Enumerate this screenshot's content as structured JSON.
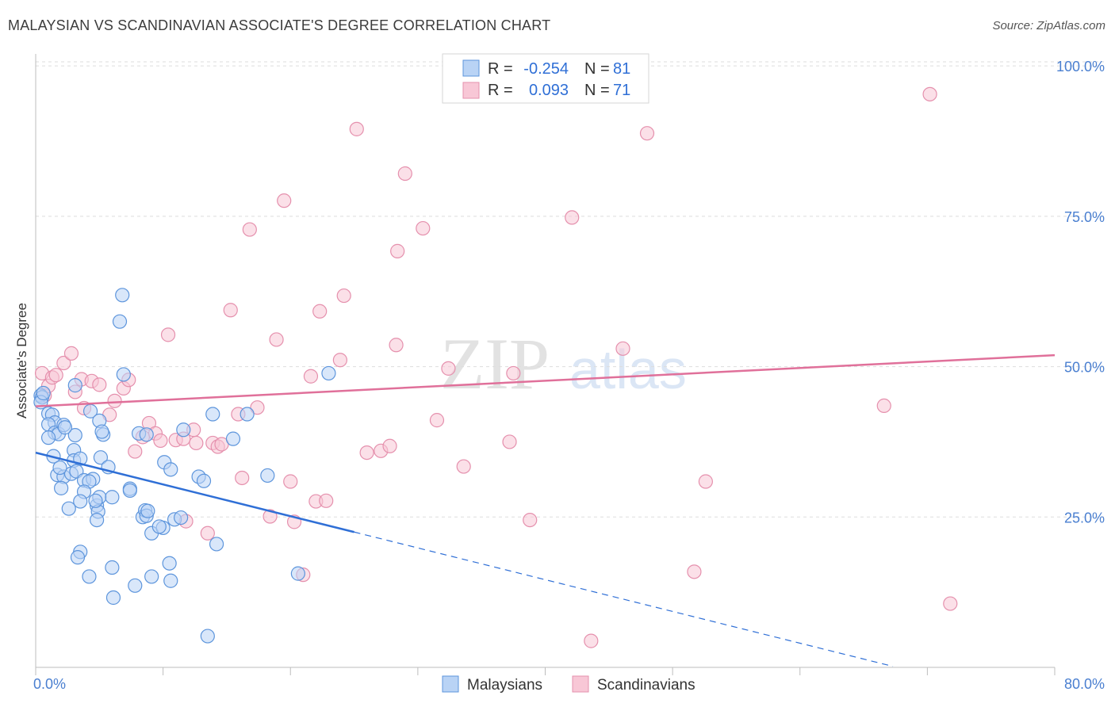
{
  "header": {
    "title": "MALAYSIAN VS SCANDINAVIAN ASSOCIATE'S DEGREE CORRELATION CHART",
    "source": "Source: ZipAtlas.com"
  },
  "watermark": {
    "zip": "ZIP",
    "atlas": "atlas"
  },
  "legend": {
    "rows": [
      {
        "r_label": "R =",
        "r_value": "-0.254",
        "n_label": "N =",
        "n_value": "81"
      },
      {
        "r_label": "R =",
        "r_value": "0.093",
        "n_label": "N =",
        "n_value": "71"
      }
    ]
  },
  "bottom_legend": {
    "items": [
      "Malaysians",
      "Scandinavians"
    ]
  },
  "colors": {
    "blue_fill": "#b9d3f5",
    "blue_stroke": "#5d95dc",
    "blue_line": "#2f6fd6",
    "pink_fill": "#f8c7d6",
    "pink_stroke": "#e590ad",
    "pink_line": "#e0709a",
    "tick_label": "#4a7fd0",
    "grid": "#dddddd"
  },
  "chart_data": {
    "type": "scatter",
    "ylabel": "Associate's Degree",
    "x_tick_labels": [
      "0.0%",
      "80.0%"
    ],
    "y_tick_labels": [
      "100.0%",
      "75.0%",
      "50.0%",
      "25.0%"
    ],
    "y_ticks": [
      100,
      75,
      50,
      25
    ],
    "xlim": [
      0,
      80
    ],
    "ylim": [
      0,
      102
    ],
    "grid": true,
    "legend_position": "top-center",
    "series": [
      {
        "name": "Malaysians",
        "r": -0.254,
        "n": 81,
        "trend": {
          "x0": 0,
          "y0": 35.7,
          "x1": 25,
          "y1": 22.5,
          "dashed_to_x": 67.3
        },
        "points": [
          [
            0.4,
            45.2
          ],
          [
            0.5,
            44.9
          ],
          [
            0.4,
            44.1
          ],
          [
            1.0,
            42.2
          ],
          [
            1.3,
            42.0
          ],
          [
            1.5,
            40.7
          ],
          [
            1.0,
            40.4
          ],
          [
            1.5,
            39.0
          ],
          [
            1.8,
            38.8
          ],
          [
            1.0,
            38.2
          ],
          [
            3.1,
            38.6
          ],
          [
            3.1,
            46.9
          ],
          [
            0.6,
            45.6
          ],
          [
            1.4,
            35.1
          ],
          [
            2.2,
            40.3
          ],
          [
            2.3,
            39.9
          ],
          [
            3.0,
            36.1
          ],
          [
            3.0,
            34.4
          ],
          [
            3.5,
            34.7
          ],
          [
            1.7,
            32.0
          ],
          [
            2.2,
            31.7
          ],
          [
            2.8,
            32.2
          ],
          [
            3.2,
            32.6
          ],
          [
            3.8,
            31.1
          ],
          [
            4.5,
            31.3
          ],
          [
            4.2,
            30.9
          ],
          [
            2.0,
            29.8
          ],
          [
            3.8,
            29.2
          ],
          [
            3.5,
            27.6
          ],
          [
            2.6,
            26.4
          ],
          [
            4.8,
            26.9
          ],
          [
            4.9,
            25.9
          ],
          [
            4.8,
            24.5
          ],
          [
            5.0,
            28.3
          ],
          [
            6.0,
            28.3
          ],
          [
            5.1,
            34.9
          ],
          [
            5.7,
            33.3
          ],
          [
            5.3,
            38.7
          ],
          [
            6.8,
            61.9
          ],
          [
            6.6,
            57.5
          ],
          [
            6.9,
            48.7
          ],
          [
            4.3,
            42.6
          ],
          [
            5.0,
            41.0
          ],
          [
            5.2,
            39.2
          ],
          [
            7.4,
            29.7
          ],
          [
            7.4,
            29.4
          ],
          [
            8.1,
            38.9
          ],
          [
            8.7,
            38.7
          ],
          [
            8.4,
            25.0
          ],
          [
            8.6,
            26.1
          ],
          [
            8.7,
            25.2
          ],
          [
            9.1,
            22.3
          ],
          [
            10.0,
            23.2
          ],
          [
            10.1,
            34.1
          ],
          [
            10.6,
            32.9
          ],
          [
            10.9,
            24.6
          ],
          [
            11.6,
            39.5
          ],
          [
            12.8,
            31.7
          ],
          [
            13.2,
            31.0
          ],
          [
            13.9,
            42.1
          ],
          [
            14.2,
            20.5
          ],
          [
            15.5,
            38.0
          ],
          [
            16.6,
            42.1
          ],
          [
            18.2,
            31.9
          ],
          [
            20.6,
            15.6
          ],
          [
            23.0,
            48.9
          ],
          [
            3.5,
            19.2
          ],
          [
            3.3,
            18.3
          ],
          [
            4.2,
            15.1
          ],
          [
            6.0,
            16.6
          ],
          [
            6.1,
            11.6
          ],
          [
            7.8,
            13.6
          ],
          [
            9.1,
            15.1
          ],
          [
            10.5,
            17.3
          ],
          [
            10.6,
            14.4
          ],
          [
            13.5,
            5.2
          ],
          [
            1.9,
            33.2
          ],
          [
            4.7,
            27.7
          ],
          [
            8.8,
            26.0
          ],
          [
            9.7,
            23.4
          ],
          [
            11.4,
            24.9
          ]
        ]
      },
      {
        "name": "Scandinavians",
        "r": 0.093,
        "n": 71,
        "trend": {
          "x0": 0,
          "y0": 43.4,
          "x1": 80,
          "y1": 51.9
        },
        "points": [
          [
            0.5,
            48.9
          ],
          [
            0.7,
            45.2
          ],
          [
            1.0,
            46.8
          ],
          [
            1.3,
            48.2
          ],
          [
            1.6,
            48.6
          ],
          [
            2.2,
            50.6
          ],
          [
            2.8,
            52.2
          ],
          [
            3.1,
            45.8
          ],
          [
            3.6,
            47.9
          ],
          [
            3.8,
            43.1
          ],
          [
            4.4,
            47.6
          ],
          [
            5.0,
            47.0
          ],
          [
            5.8,
            42.0
          ],
          [
            6.2,
            44.3
          ],
          [
            6.9,
            46.4
          ],
          [
            7.3,
            47.8
          ],
          [
            7.8,
            35.9
          ],
          [
            8.4,
            38.3
          ],
          [
            8.9,
            40.6
          ],
          [
            9.4,
            38.9
          ],
          [
            9.8,
            37.7
          ],
          [
            10.4,
            55.3
          ],
          [
            11.0,
            37.8
          ],
          [
            11.6,
            38.0
          ],
          [
            12.4,
            39.5
          ],
          [
            12.6,
            37.3
          ],
          [
            13.5,
            22.3
          ],
          [
            13.9,
            37.3
          ],
          [
            14.3,
            36.7
          ],
          [
            14.6,
            37.1
          ],
          [
            15.3,
            59.4
          ],
          [
            15.9,
            42.1
          ],
          [
            16.2,
            31.5
          ],
          [
            16.8,
            72.8
          ],
          [
            17.4,
            43.2
          ],
          [
            18.4,
            25.1
          ],
          [
            18.9,
            54.5
          ],
          [
            19.5,
            77.6
          ],
          [
            20.0,
            30.9
          ],
          [
            20.3,
            24.2
          ],
          [
            21.0,
            15.4
          ],
          [
            21.6,
            48.4
          ],
          [
            22.0,
            27.6
          ],
          [
            22.3,
            59.2
          ],
          [
            22.8,
            27.7
          ],
          [
            23.9,
            51.1
          ],
          [
            24.2,
            61.8
          ],
          [
            25.2,
            89.5
          ],
          [
            26.0,
            35.7
          ],
          [
            27.1,
            36.0
          ],
          [
            27.8,
            36.8
          ],
          [
            28.3,
            53.6
          ],
          [
            28.4,
            69.2
          ],
          [
            29.0,
            82.1
          ],
          [
            30.4,
            73.0
          ],
          [
            31.5,
            41.1
          ],
          [
            32.4,
            49.7
          ],
          [
            33.6,
            33.4
          ],
          [
            37.2,
            37.5
          ],
          [
            37.5,
            48.9
          ],
          [
            38.8,
            24.5
          ],
          [
            42.1,
            74.8
          ],
          [
            46.1,
            53.0
          ],
          [
            48.0,
            88.8
          ],
          [
            51.7,
            15.9
          ],
          [
            52.6,
            30.9
          ],
          [
            66.6,
            43.5
          ],
          [
            70.2,
            95.3
          ],
          [
            71.8,
            10.6
          ],
          [
            43.6,
            4.4
          ],
          [
            11.8,
            24.3
          ]
        ]
      }
    ]
  }
}
